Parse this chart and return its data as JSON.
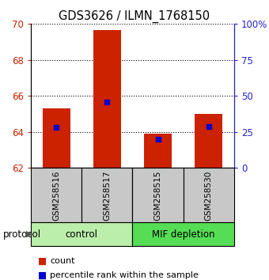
{
  "title": "GDS3626 / ILMN_1768150",
  "samples": [
    "GSM258516",
    "GSM258517",
    "GSM258515",
    "GSM258530"
  ],
  "groups": [
    "control",
    "control",
    "MIF depletion",
    "MIF depletion"
  ],
  "count_values": [
    65.3,
    69.65,
    63.9,
    65.0
  ],
  "percentile_values": [
    28.0,
    46.0,
    20.0,
    29.0
  ],
  "ylim_left": [
    62,
    70
  ],
  "ylim_right": [
    0,
    100
  ],
  "yticks_left": [
    62,
    64,
    66,
    68,
    70
  ],
  "yticks_right": [
    0,
    25,
    50,
    75,
    100
  ],
  "ytick_labels_right": [
    "0",
    "25",
    "50",
    "75",
    "100%"
  ],
  "bar_bottom": 62,
  "red_color": "#cc2200",
  "blue_color": "#0000cc",
  "control_color": "#bbeeaa",
  "mif_color": "#55dd55",
  "gray_color": "#c8c8c8",
  "bar_width": 0.55,
  "legend_items": [
    "count",
    "percentile rank within the sample"
  ]
}
